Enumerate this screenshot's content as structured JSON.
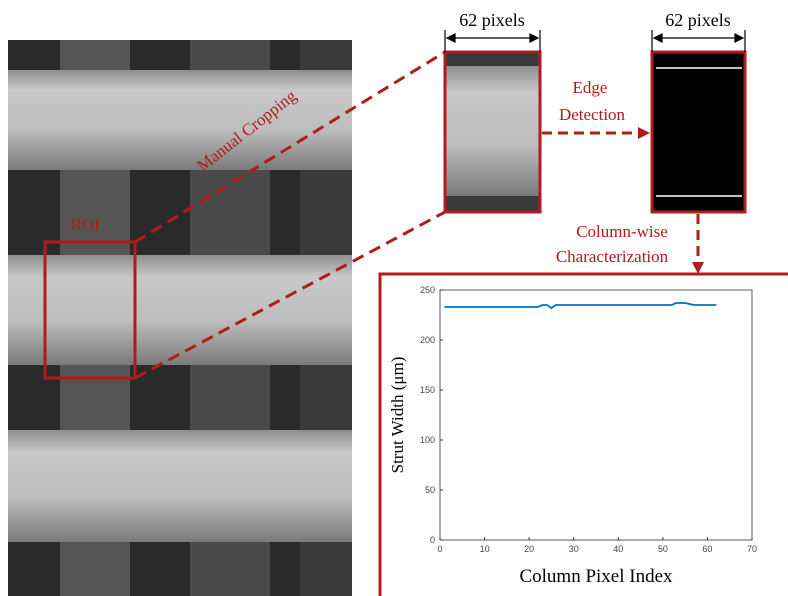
{
  "annotations": {
    "roi": "ROI",
    "manual_cropping": "Manual Cropping",
    "crop_width": "62 pixels",
    "edge_width": "62 pixels",
    "edge_detection_1": "Edge",
    "edge_detection_2": "Detection",
    "column_wise_1": "Column-wise",
    "column_wise_2": "Characterization"
  },
  "chart_data": {
    "type": "line",
    "xlabel": "Column Pixel Index",
    "ylabel": "Strut Width (μm)",
    "color": "#0072bd",
    "x": [
      1,
      2,
      3,
      4,
      5,
      6,
      7,
      8,
      9,
      10,
      11,
      12,
      13,
      14,
      15,
      16,
      17,
      18,
      19,
      20,
      21,
      22,
      23,
      24,
      25,
      26,
      27,
      28,
      29,
      30,
      31,
      32,
      33,
      34,
      35,
      36,
      37,
      38,
      39,
      40,
      41,
      42,
      43,
      44,
      45,
      46,
      47,
      48,
      49,
      50,
      51,
      52,
      53,
      54,
      55,
      56,
      57,
      58,
      59,
      60,
      61,
      62
    ],
    "values": [
      233,
      233,
      233,
      233,
      233,
      233,
      233,
      233,
      233,
      233,
      233,
      233,
      233,
      233,
      233,
      233,
      233,
      233,
      233,
      233,
      233,
      233,
      235,
      235,
      232,
      235,
      235,
      235,
      235,
      235,
      235,
      235,
      235,
      235,
      235,
      235,
      235,
      235,
      235,
      235,
      235,
      235,
      235,
      235,
      235,
      235,
      235,
      235,
      235,
      235,
      235,
      235,
      237,
      237,
      237,
      236,
      235,
      235,
      235,
      235,
      235,
      235
    ],
    "xlim": [
      0,
      70
    ],
    "xticks": [
      0,
      10,
      20,
      30,
      40,
      50,
      60,
      70
    ],
    "ylim": [
      0,
      250
    ],
    "yticks": [
      0,
      50,
      100,
      150,
      200,
      250
    ]
  }
}
